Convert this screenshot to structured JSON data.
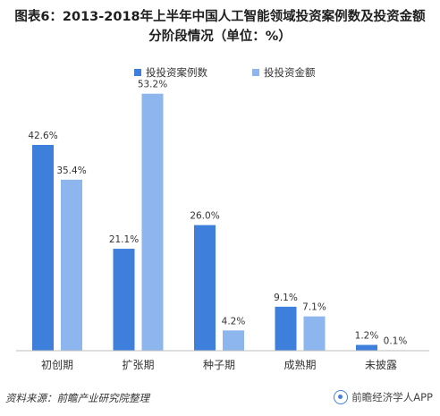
{
  "title": "图表6：2013-2018年上半年中国人工智能领域投资案例数及投资金额分阶段情况（单位：%）",
  "source": "资料来源：前瞻产业研究院整理",
  "brand": "前瞻经济学人APP",
  "colors": {
    "series1": "#3d7fdb",
    "series2": "#8db6ee",
    "axis": "#bfbfbf",
    "label": "#333333"
  },
  "chart_data": {
    "type": "bar",
    "categories": [
      "初创期",
      "扩张期",
      "种子期",
      "成熟期",
      "未披露"
    ],
    "series": [
      {
        "name": "投投资案例数",
        "values": [
          42.6,
          21.1,
          26.0,
          9.1,
          1.2
        ],
        "labels": [
          "42.6%",
          "21.1%",
          "26.0%",
          "9.1%",
          "1.2%"
        ]
      },
      {
        "name": "投投资金额",
        "values": [
          35.4,
          53.2,
          4.2,
          7.1,
          0.1
        ],
        "labels": [
          "35.4%",
          "53.2%",
          "4.2%",
          "7.1%",
          "0.1%"
        ]
      }
    ],
    "ylim": [
      0,
      60
    ],
    "grid": false,
    "legend": "top-center",
    "title": "图表6：2013-2018年上半年中国人工智能领域投资案例数及投资金额分阶段情况（单位：%）",
    "xlabel": "",
    "ylabel": ""
  }
}
